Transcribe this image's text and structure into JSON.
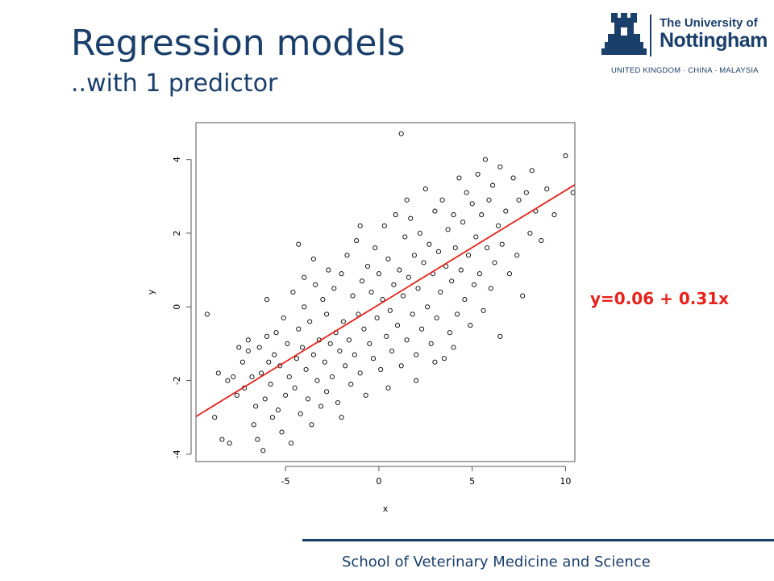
{
  "slide": {
    "title": "Regression models",
    "subtitle": "..with 1 predictor",
    "equation": "y=0.06 + 0.31x",
    "footer": "School of Veterinary Medicine and Science"
  },
  "logo": {
    "line1": "The University of",
    "line2": "Nottingham",
    "line3": "UNITED KINGDOM · CHINA · MALAYSIA"
  },
  "colors": {
    "brand": "#1a3f6b",
    "regression_line": "#e8211a",
    "points": "#000000"
  },
  "chart_data": {
    "type": "scatter",
    "xlabel": "x",
    "ylabel": "y",
    "xlim": [
      -9.8,
      10.5
    ],
    "ylim": [
      -4.2,
      5.0
    ],
    "x_ticks": [
      -5,
      0,
      5,
      10
    ],
    "y_ticks": [
      -4,
      -2,
      0,
      2,
      4
    ],
    "x_tick_labels": [
      "-5",
      "0",
      "5",
      "10"
    ],
    "y_tick_labels": [
      "-4",
      "-2",
      "0",
      "2",
      "4"
    ],
    "grid": false,
    "regression_line": {
      "intercept": 0.06,
      "slope": 0.31
    },
    "points": [
      [
        -9.2,
        -0.2
      ],
      [
        -8.8,
        -3.0
      ],
      [
        -8.6,
        -1.8
      ],
      [
        -8.4,
        -3.6
      ],
      [
        -8.1,
        -2.0
      ],
      [
        -8.0,
        -3.7
      ],
      [
        -7.8,
        -1.9
      ],
      [
        -7.6,
        -2.4
      ],
      [
        -7.5,
        -1.1
      ],
      [
        -7.3,
        -1.5
      ],
      [
        -7.2,
        -2.2
      ],
      [
        -7.0,
        -0.9
      ],
      [
        -7.0,
        -1.2
      ],
      [
        -6.8,
        -1.9
      ],
      [
        -6.7,
        -3.2
      ],
      [
        -6.6,
        -2.7
      ],
      [
        -6.5,
        -3.6
      ],
      [
        -6.4,
        -1.1
      ],
      [
        -6.3,
        -1.8
      ],
      [
        -6.2,
        -3.9
      ],
      [
        -6.1,
        -2.5
      ],
      [
        -6.0,
        -0.8
      ],
      [
        -5.9,
        -1.5
      ],
      [
        -5.8,
        -2.1
      ],
      [
        -5.7,
        -3.0
      ],
      [
        -5.6,
        -1.3
      ],
      [
        -5.5,
        -0.7
      ],
      [
        -5.4,
        -2.8
      ],
      [
        -5.3,
        -1.6
      ],
      [
        -5.2,
        -3.4
      ],
      [
        -5.1,
        -0.3
      ],
      [
        -5.0,
        -2.4
      ],
      [
        -4.9,
        -1.0
      ],
      [
        -4.8,
        -1.9
      ],
      [
        -4.7,
        -3.7
      ],
      [
        -4.6,
        0.4
      ],
      [
        -4.5,
        -2.2
      ],
      [
        -4.4,
        -1.4
      ],
      [
        -4.3,
        -0.6
      ],
      [
        -4.3,
        1.7
      ],
      [
        -4.2,
        -2.9
      ],
      [
        -4.1,
        -1.1
      ],
      [
        -4.0,
        0.0
      ],
      [
        -3.9,
        -1.7
      ],
      [
        -3.8,
        -2.5
      ],
      [
        -3.7,
        -0.4
      ],
      [
        -3.6,
        -3.2
      ],
      [
        -3.5,
        -1.3
      ],
      [
        -3.4,
        0.6
      ],
      [
        -3.3,
        -2.0
      ],
      [
        -3.2,
        -0.9
      ],
      [
        -3.1,
        -2.7
      ],
      [
        -3.0,
        0.2
      ],
      [
        -2.9,
        -1.5
      ],
      [
        -2.8,
        -0.2
      ],
      [
        -2.8,
        -2.3
      ],
      [
        -2.7,
        1.0
      ],
      [
        -2.6,
        -1.0
      ],
      [
        -2.5,
        -1.9
      ],
      [
        -2.4,
        0.5
      ],
      [
        -2.3,
        -0.7
      ],
      [
        -2.2,
        -2.6
      ],
      [
        -2.1,
        -1.2
      ],
      [
        -2.0,
        0.9
      ],
      [
        -1.9,
        -0.4
      ],
      [
        -1.8,
        -1.6
      ],
      [
        -1.7,
        1.4
      ],
      [
        -1.6,
        -0.9
      ],
      [
        -1.5,
        -2.1
      ],
      [
        -1.4,
        0.3
      ],
      [
        -1.3,
        -1.3
      ],
      [
        -1.2,
        1.8
      ],
      [
        -1.1,
        -0.2
      ],
      [
        -1.0,
        -1.8
      ],
      [
        -0.9,
        0.7
      ],
      [
        -0.8,
        -0.6
      ],
      [
        -0.7,
        -2.4
      ],
      [
        -0.6,
        1.1
      ],
      [
        -0.5,
        -1.0
      ],
      [
        -0.4,
        0.4
      ],
      [
        -0.3,
        -1.4
      ],
      [
        -0.2,
        1.6
      ],
      [
        -0.1,
        -0.3
      ],
      [
        0.0,
        0.9
      ],
      [
        0.1,
        -1.7
      ],
      [
        0.2,
        0.2
      ],
      [
        0.3,
        2.2
      ],
      [
        0.4,
        -0.8
      ],
      [
        0.5,
        1.3
      ],
      [
        0.6,
        -0.1
      ],
      [
        0.7,
        -1.2
      ],
      [
        0.8,
        0.6
      ],
      [
        0.9,
        2.5
      ],
      [
        1.0,
        -0.5
      ],
      [
        1.1,
        1.0
      ],
      [
        1.2,
        -1.6
      ],
      [
        1.2,
        4.7
      ],
      [
        1.3,
        0.3
      ],
      [
        1.4,
        1.9
      ],
      [
        1.5,
        -0.9
      ],
      [
        1.6,
        0.8
      ],
      [
        1.7,
        2.4
      ],
      [
        1.8,
        -0.2
      ],
      [
        1.9,
        1.4
      ],
      [
        2.0,
        -1.3
      ],
      [
        2.1,
        0.5
      ],
      [
        2.2,
        2.0
      ],
      [
        2.3,
        -0.6
      ],
      [
        2.4,
        1.2
      ],
      [
        2.5,
        3.2
      ],
      [
        2.6,
        0.0
      ],
      [
        2.7,
        1.7
      ],
      [
        2.8,
        -1.0
      ],
      [
        2.9,
        0.9
      ],
      [
        3.0,
        2.6
      ],
      [
        3.1,
        -0.3
      ],
      [
        3.2,
        1.5
      ],
      [
        3.3,
        0.4
      ],
      [
        3.4,
        2.9
      ],
      [
        3.5,
        -1.4
      ],
      [
        3.6,
        1.1
      ],
      [
        3.7,
        2.1
      ],
      [
        3.8,
        -0.7
      ],
      [
        3.9,
        0.7
      ],
      [
        4.0,
        2.5
      ],
      [
        4.1,
        1.6
      ],
      [
        4.2,
        -0.2
      ],
      [
        4.3,
        3.5
      ],
      [
        4.4,
        1.0
      ],
      [
        4.5,
        2.3
      ],
      [
        4.6,
        0.2
      ],
      [
        4.7,
        3.1
      ],
      [
        4.8,
        1.4
      ],
      [
        4.9,
        -0.5
      ],
      [
        5.0,
        2.8
      ],
      [
        5.1,
        0.6
      ],
      [
        5.2,
        1.9
      ],
      [
        5.3,
        3.6
      ],
      [
        5.4,
        0.9
      ],
      [
        5.5,
        2.5
      ],
      [
        5.6,
        -0.1
      ],
      [
        5.7,
        4.0
      ],
      [
        5.8,
        1.6
      ],
      [
        5.9,
        2.9
      ],
      [
        6.0,
        0.5
      ],
      [
        6.1,
        3.3
      ],
      [
        6.2,
        1.2
      ],
      [
        6.4,
        2.2
      ],
      [
        6.5,
        3.8
      ],
      [
        6.6,
        1.7
      ],
      [
        6.8,
        2.6
      ],
      [
        7.0,
        0.9
      ],
      [
        7.2,
        3.5
      ],
      [
        7.4,
        1.4
      ],
      [
        7.5,
        2.9
      ],
      [
        7.7,
        0.3
      ],
      [
        7.9,
        3.1
      ],
      [
        8.1,
        2.0
      ],
      [
        8.2,
        3.7
      ],
      [
        8.4,
        2.6
      ],
      [
        8.7,
        1.8
      ],
      [
        9.0,
        3.2
      ],
      [
        9.4,
        2.5
      ],
      [
        10.0,
        4.1
      ],
      [
        10.4,
        3.1
      ],
      [
        3.0,
        -1.5
      ],
      [
        -3.5,
        1.3
      ],
      [
        0.5,
        -2.2
      ],
      [
        -2.0,
        -3.0
      ],
      [
        2.0,
        -2.0
      ],
      [
        4.0,
        -1.1
      ],
      [
        -4.0,
        0.8
      ],
      [
        6.5,
        -0.8
      ],
      [
        -6.0,
        0.2
      ],
      [
        1.5,
        2.9
      ],
      [
        -1.0,
        2.2
      ]
    ]
  }
}
